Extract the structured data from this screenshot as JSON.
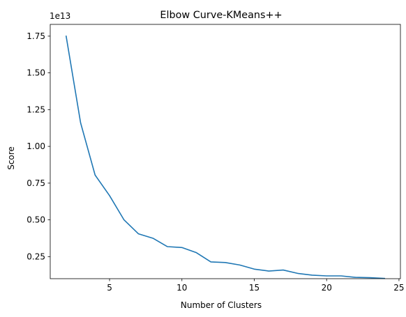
{
  "chart_data": {
    "type": "line",
    "title": "Elbow Curve-KMeans++",
    "xlabel": "Number of Clusters",
    "ylabel": "Score",
    "y_offset_label": "1e13",
    "xlim": [
      0.9,
      25.1
    ],
    "ylim": [
      0.1,
      1.83
    ],
    "x_ticks": [
      5,
      10,
      15,
      20,
      25
    ],
    "x_tick_labels": [
      "5",
      "10",
      "15",
      "20",
      "25"
    ],
    "y_ticks": [
      0.25,
      0.5,
      0.75,
      1.0,
      1.25,
      1.5,
      1.75
    ],
    "y_tick_labels": [
      "0.25",
      "0.50",
      "0.75",
      "1.00",
      "1.25",
      "1.50",
      "1.75"
    ],
    "grid": false,
    "series_color": "#1f77b4",
    "x": [
      2,
      3,
      4,
      5,
      6,
      7,
      8,
      9,
      10,
      11,
      12,
      13,
      14,
      15,
      16,
      17,
      18,
      19,
      20,
      21,
      22,
      23,
      24
    ],
    "y": [
      1.75,
      1.16,
      0.805,
      0.665,
      0.5,
      0.405,
      0.375,
      0.318,
      0.312,
      0.277,
      0.214,
      0.21,
      0.193,
      0.165,
      0.152,
      0.159,
      0.136,
      0.124,
      0.119,
      0.119,
      0.109,
      0.107,
      0.102
    ]
  }
}
